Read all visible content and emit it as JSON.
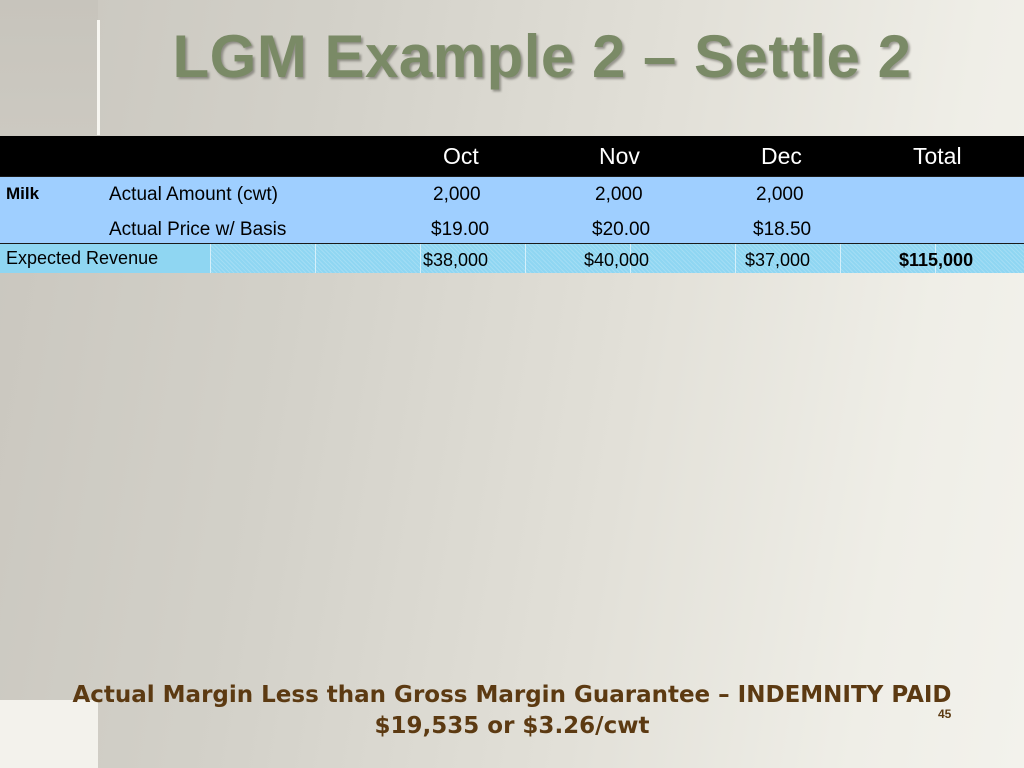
{
  "slide": {
    "title": "LGM Example 2 – Settle 2",
    "page_number": "45"
  },
  "table": {
    "headers": [
      "Oct",
      "Nov",
      "Dec",
      "Total"
    ],
    "section_label": "Milk",
    "rows": [
      {
        "label": "Actual Amount (cwt)",
        "values": [
          "2,000",
          "2,000",
          "2,000",
          ""
        ]
      },
      {
        "label": "Actual Price w/ Basis",
        "values": [
          "$19.00",
          "$20.00",
          "$18.50",
          ""
        ]
      }
    ],
    "revenue_row": {
      "label": "Expected Revenue",
      "values": [
        "$38,000",
        "$40,000",
        "$37,000",
        "$115,000"
      ]
    }
  },
  "footer": {
    "line1": "Actual Margin Less than Gross Margin Guarantee – INDEMNITY PAID",
    "line2": "$19,535 or $3.26/cwt"
  },
  "colors": {
    "title": "#7a8a66",
    "header_bg": "#000000",
    "milk_bg": "#9fcfff",
    "revenue_bg": "#8fd6f2",
    "footer_text": "#5c3a12"
  }
}
